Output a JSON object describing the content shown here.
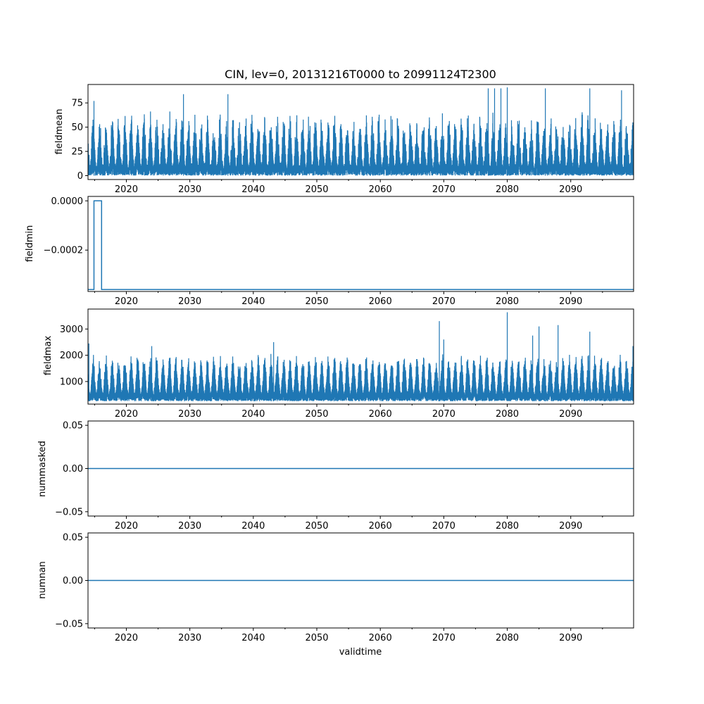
{
  "chart_data": {
    "type": "line",
    "title": "CIN, lev=0, 20131216T0000 to 20991124T2300",
    "xlabel": "validtime",
    "color": "#1f77b4",
    "x_range": [
      2013.96,
      2099.9
    ],
    "x_ticks": [
      2020,
      2030,
      2040,
      2050,
      2060,
      2070,
      2080,
      2090
    ],
    "x_tick_labels": [
      "2020",
      "2030",
      "2040",
      "2050",
      "2060",
      "2070",
      "2080",
      "2090"
    ],
    "panels": [
      {
        "name": "fieldmean",
        "ylabel": "fieldmean",
        "ylim": [
          -4,
          94
        ],
        "y_ticks": [
          0,
          25,
          50,
          75
        ],
        "y_tick_labels": [
          "0",
          "25",
          "50",
          "75"
        ],
        "kind": "seasonal",
        "low_range": [
          0,
          12
        ],
        "high_range": [
          28,
          70
        ],
        "peaks": [
          {
            "x": 2014.9,
            "y": 77
          },
          {
            "x": 2029.0,
            "y": 84
          },
          {
            "x": 2036.0,
            "y": 84
          },
          {
            "x": 2077.0,
            "y": 90
          },
          {
            "x": 2078.0,
            "y": 90
          },
          {
            "x": 2079.0,
            "y": 90
          },
          {
            "x": 2080.0,
            "y": 91
          },
          {
            "x": 2086.0,
            "y": 90
          },
          {
            "x": 2093.0,
            "y": 90
          },
          {
            "x": 2098.0,
            "y": 88
          }
        ]
      },
      {
        "name": "fieldmin",
        "ylabel": "fieldmin",
        "ylim": [
          -0.000368,
          1.8e-05
        ],
        "y_ticks": [
          0.0,
          -0.0002
        ],
        "y_tick_labels": [
          "0.0000",
          "−0.0002"
        ],
        "kind": "step",
        "steps": [
          {
            "x": 2013.96,
            "y": -0.00036
          },
          {
            "x": 2014.9,
            "y": 0.0
          },
          {
            "x": 2016.1,
            "y": -0.00036
          },
          {
            "x": 2099.9,
            "y": -0.00036
          }
        ]
      },
      {
        "name": "fieldmax",
        "ylabel": "fieldmax",
        "ylim": [
          140,
          3760
        ],
        "y_ticks": [
          1000,
          2000,
          3000
        ],
        "y_tick_labels": [
          "1000",
          "2000",
          "3000"
        ],
        "kind": "seasonal",
        "low_range": [
          250,
          600
        ],
        "high_range": [
          1600,
          2100
        ],
        "peaks": [
          {
            "x": 2014.1,
            "y": 2450
          },
          {
            "x": 2024.0,
            "y": 2350
          },
          {
            "x": 2043.2,
            "y": 2500
          },
          {
            "x": 2069.3,
            "y": 3300
          },
          {
            "x": 2070.0,
            "y": 2600
          },
          {
            "x": 2080.0,
            "y": 3640
          },
          {
            "x": 2084.0,
            "y": 2750
          },
          {
            "x": 2085.0,
            "y": 3100
          },
          {
            "x": 2088.0,
            "y": 3150
          },
          {
            "x": 2093.0,
            "y": 2900
          },
          {
            "x": 2099.8,
            "y": 2350
          }
        ]
      },
      {
        "name": "nummasked",
        "ylabel": "nummasked",
        "ylim": [
          -0.055,
          0.055
        ],
        "y_ticks": [
          0.05,
          0.0,
          -0.05
        ],
        "y_tick_labels": [
          "0.05",
          "0.00",
          "−0.05"
        ],
        "kind": "constant",
        "value": 0.0
      },
      {
        "name": "numnan",
        "ylabel": "numnan",
        "ylim": [
          -0.055,
          0.055
        ],
        "y_ticks": [
          0.05,
          0.0,
          -0.05
        ],
        "y_tick_labels": [
          "0.05",
          "0.00",
          "−0.05"
        ],
        "kind": "constant",
        "value": 0.0
      }
    ]
  }
}
